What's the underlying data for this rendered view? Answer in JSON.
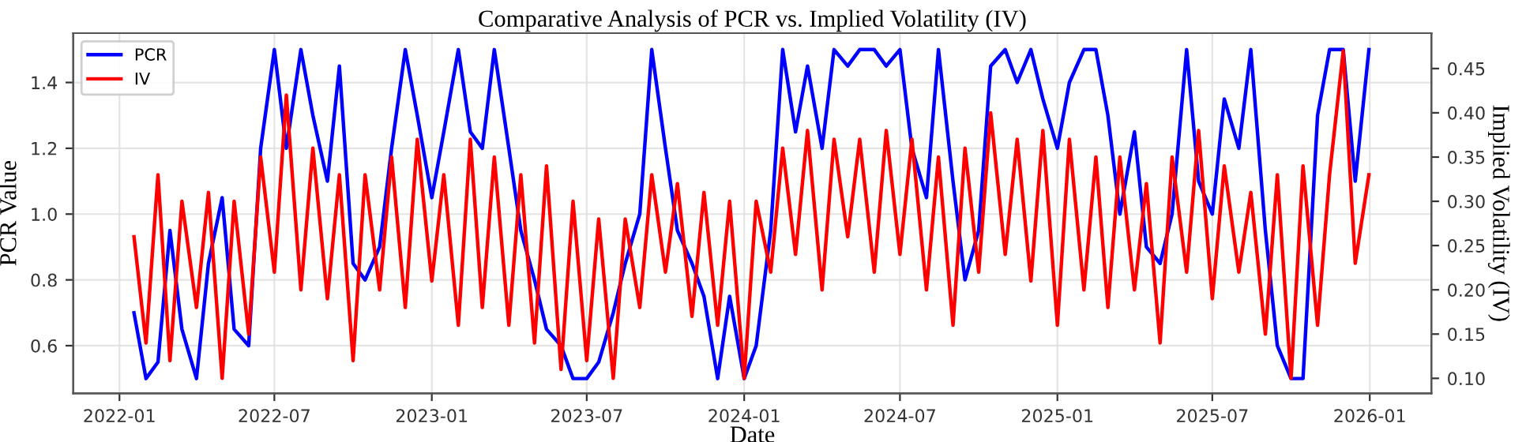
{
  "chart_data": {
    "type": "line",
    "title": "Comparative Analysis of PCR vs. Implied Volatility (IV)",
    "xlabel": "Date",
    "ylabel": "PCR Value",
    "y2label": "Implied Volatility (IV)",
    "x": [
      "2022-01-18",
      "2022-02-01",
      "2022-02-15",
      "2022-03-01",
      "2022-03-15",
      "2022-04-01",
      "2022-04-15",
      "2022-05-01",
      "2022-05-15",
      "2022-06-01",
      "2022-06-15",
      "2022-07-01",
      "2022-07-15",
      "2022-08-01",
      "2022-08-15",
      "2022-09-01",
      "2022-09-15",
      "2022-10-01",
      "2022-10-15",
      "2022-11-01",
      "2022-11-15",
      "2022-12-01",
      "2022-12-15",
      "2023-01-01",
      "2023-01-15",
      "2023-02-01",
      "2023-02-15",
      "2023-03-01",
      "2023-03-15",
      "2023-04-01",
      "2023-04-15",
      "2023-05-01",
      "2023-05-15",
      "2023-06-01",
      "2023-06-15",
      "2023-07-01",
      "2023-07-15",
      "2023-08-01",
      "2023-08-15",
      "2023-09-01",
      "2023-09-15",
      "2023-10-01",
      "2023-10-15",
      "2023-11-01",
      "2023-11-15",
      "2023-12-01",
      "2023-12-15",
      "2024-01-01",
      "2024-01-15",
      "2024-02-01",
      "2024-02-15",
      "2024-03-01",
      "2024-03-15",
      "2024-04-01",
      "2024-04-15",
      "2024-05-01",
      "2024-05-15",
      "2024-06-01",
      "2024-06-15",
      "2024-07-01",
      "2024-07-15",
      "2024-08-01",
      "2024-08-15",
      "2024-09-01",
      "2024-09-15",
      "2024-10-01",
      "2024-10-15",
      "2024-11-01",
      "2024-11-15",
      "2024-12-01",
      "2024-12-15",
      "2025-01-01",
      "2025-01-15",
      "2025-02-01",
      "2025-02-15",
      "2025-03-01",
      "2025-03-15",
      "2025-04-01",
      "2025-04-15",
      "2025-05-01",
      "2025-05-15",
      "2025-06-01",
      "2025-06-15",
      "2025-07-01",
      "2025-07-15",
      "2025-08-01",
      "2025-08-15",
      "2025-09-01",
      "2025-09-15",
      "2025-10-01",
      "2025-10-15",
      "2025-11-01",
      "2025-11-15",
      "2025-12-01",
      "2025-12-15",
      "2025-12-31"
    ],
    "series": [
      {
        "name": "PCR",
        "color": "#0000ff",
        "values": [
          0.7,
          0.5,
          0.55,
          0.95,
          0.65,
          0.5,
          0.85,
          1.05,
          0.65,
          0.6,
          1.2,
          1.5,
          1.2,
          1.5,
          1.3,
          1.1,
          1.45,
          0.85,
          0.8,
          0.9,
          1.2,
          1.5,
          1.3,
          1.05,
          1.25,
          1.5,
          1.25,
          1.2,
          1.5,
          1.2,
          0.95,
          0.8,
          0.65,
          0.6,
          0.5,
          0.5,
          0.55,
          0.7,
          0.85,
          1.0,
          1.5,
          1.2,
          0.95,
          0.85,
          0.75,
          0.5,
          0.75,
          0.5,
          0.6,
          0.95,
          1.5,
          1.25,
          1.45,
          1.2,
          1.5,
          1.45,
          1.5,
          1.5,
          1.45,
          1.5,
          1.2,
          1.05,
          1.5,
          1.1,
          0.8,
          0.95,
          1.45,
          1.5,
          1.4,
          1.5,
          1.35,
          1.2,
          1.4,
          1.5,
          1.5,
          1.3,
          1.0,
          1.25,
          0.9,
          0.85,
          1.0,
          1.5,
          1.1,
          1.0,
          1.35,
          1.2,
          1.5,
          0.95,
          0.6,
          0.5,
          0.5,
          1.3,
          1.5,
          1.5,
          1.1,
          1.5
        ]
      },
      {
        "name": "IV",
        "color": "#ff0000",
        "axis": "y2",
        "values": [
          0.26,
          0.14,
          0.33,
          0.12,
          0.3,
          0.18,
          0.31,
          0.1,
          0.3,
          0.15,
          0.35,
          0.22,
          0.42,
          0.2,
          0.36,
          0.19,
          0.33,
          0.12,
          0.33,
          0.2,
          0.35,
          0.18,
          0.37,
          0.21,
          0.33,
          0.16,
          0.37,
          0.18,
          0.35,
          0.16,
          0.33,
          0.14,
          0.34,
          0.11,
          0.3,
          0.12,
          0.28,
          0.1,
          0.28,
          0.18,
          0.33,
          0.22,
          0.32,
          0.17,
          0.31,
          0.16,
          0.3,
          0.1,
          0.3,
          0.22,
          0.36,
          0.24,
          0.38,
          0.2,
          0.37,
          0.26,
          0.37,
          0.22,
          0.38,
          0.24,
          0.37,
          0.2,
          0.35,
          0.16,
          0.36,
          0.22,
          0.4,
          0.24,
          0.37,
          0.21,
          0.38,
          0.16,
          0.37,
          0.2,
          0.35,
          0.18,
          0.35,
          0.2,
          0.32,
          0.14,
          0.35,
          0.22,
          0.38,
          0.19,
          0.34,
          0.22,
          0.31,
          0.15,
          0.33,
          0.1,
          0.34,
          0.16,
          0.33,
          0.47,
          0.23,
          0.33
        ]
      }
    ],
    "xlim": [
      "2021-11-08",
      "2026-03-14"
    ],
    "xticks": [
      {
        "value": "2022-01-01",
        "label": "2022-01"
      },
      {
        "value": "2022-07-01",
        "label": "2022-07"
      },
      {
        "value": "2023-01-01",
        "label": "2023-01"
      },
      {
        "value": "2023-07-01",
        "label": "2023-07"
      },
      {
        "value": "2024-01-01",
        "label": "2024-01"
      },
      {
        "value": "2024-07-01",
        "label": "2024-07"
      },
      {
        "value": "2025-01-01",
        "label": "2025-01"
      },
      {
        "value": "2025-07-01",
        "label": "2025-07"
      },
      {
        "value": "2026-01-01",
        "label": "2026-01"
      }
    ],
    "ylim": [
      0.455,
      1.55
    ],
    "yticks": [
      0.6,
      0.8,
      {
        "value": 1.0,
        "label": "1.0"
      },
      1.2,
      1.4
    ],
    "y2lim": [
      0.083,
      0.49
    ],
    "y2ticks": [
      {
        "value": 0.1,
        "label": "0.10"
      },
      {
        "value": 0.15,
        "label": "0.15"
      },
      {
        "value": 0.2,
        "label": "0.20"
      },
      {
        "value": 0.25,
        "label": "0.25"
      },
      {
        "value": 0.3,
        "label": "0.30"
      },
      {
        "value": 0.35,
        "label": "0.35"
      },
      {
        "value": 0.4,
        "label": "0.40"
      },
      {
        "value": 0.45,
        "label": "0.45"
      }
    ],
    "grid": true,
    "legend": "top left",
    "marker": "none",
    "line_style": "solid"
  }
}
